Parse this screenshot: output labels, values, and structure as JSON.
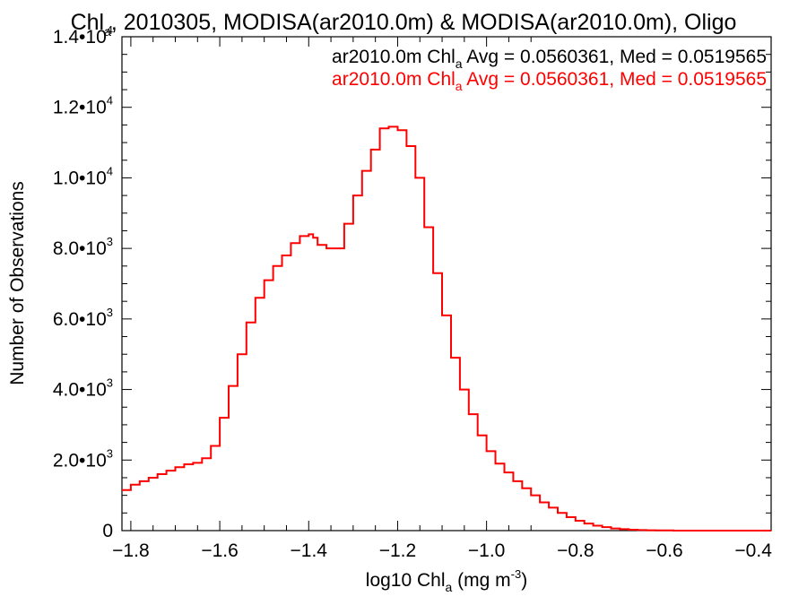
{
  "chart_data": {
    "type": "line",
    "title": {
      "pre": "Chl",
      "sub": "a",
      "post": ", 2010305, MODISA(ar2010.0m) & MODISA(ar2010.0m), Oligo"
    },
    "xlabel": {
      "pre": "log10 Chl",
      "sub": "a",
      "mid": " (mg m",
      "sup": "-3",
      "post": ")"
    },
    "ylabel": "Number of Observations",
    "xlim": [
      -1.82,
      -0.36
    ],
    "ylim": [
      0,
      14000
    ],
    "x_ticks": [
      {
        "value": -1.8,
        "label": "−1.8"
      },
      {
        "value": -1.6,
        "label": "−1.6"
      },
      {
        "value": -1.4,
        "label": "−1.4"
      },
      {
        "value": -1.2,
        "label": "−1.2"
      },
      {
        "value": -1.0,
        "label": "−1.0"
      },
      {
        "value": -0.8,
        "label": "−0.8"
      },
      {
        "value": -0.6,
        "label": "−0.6"
      },
      {
        "value": -0.4,
        "label": "−0.4"
      }
    ],
    "y_ticks": [
      {
        "value": 0,
        "mant": "0",
        "exp": ""
      },
      {
        "value": 2000,
        "mant": "2.0•10",
        "exp": "3"
      },
      {
        "value": 4000,
        "mant": "4.0•10",
        "exp": "3"
      },
      {
        "value": 6000,
        "mant": "6.0•10",
        "exp": "3"
      },
      {
        "value": 8000,
        "mant": "8.0•10",
        "exp": "3"
      },
      {
        "value": 10000,
        "mant": "1.0•10",
        "exp": "4"
      },
      {
        "value": 12000,
        "mant": "1.2•10",
        "exp": "4"
      },
      {
        "value": 14000,
        "mant": "1.4•10",
        "exp": "4"
      }
    ],
    "annotations": [
      {
        "pre": "ar2010.0m Chl",
        "sub": "a",
        "post": " Avg = 0.0560361, Med = 0.0519565",
        "color": "#000000"
      },
      {
        "pre": "ar2010.0m Chl",
        "sub": "a",
        "post": " Avg = 0.0560361, Med = 0.0519565",
        "color": "#ff0000"
      }
    ],
    "grid": false,
    "series": [
      {
        "color": "#ff0000",
        "step": true,
        "x": [
          -1.82,
          -1.8,
          -1.78,
          -1.76,
          -1.74,
          -1.72,
          -1.7,
          -1.68,
          -1.66,
          -1.64,
          -1.62,
          -1.6,
          -1.58,
          -1.56,
          -1.54,
          -1.52,
          -1.5,
          -1.48,
          -1.46,
          -1.44,
          -1.42,
          -1.4,
          -1.39,
          -1.38,
          -1.36,
          -1.34,
          -1.32,
          -1.3,
          -1.28,
          -1.26,
          -1.24,
          -1.22,
          -1.2,
          -1.18,
          -1.16,
          -1.14,
          -1.12,
          -1.1,
          -1.08,
          -1.06,
          -1.04,
          -1.02,
          -1.0,
          -0.98,
          -0.96,
          -0.94,
          -0.92,
          -0.9,
          -0.88,
          -0.86,
          -0.84,
          -0.82,
          -0.8,
          -0.78,
          -0.76,
          -0.74,
          -0.72,
          -0.7,
          -0.68,
          -0.66,
          -0.64,
          -0.62,
          -0.6,
          -0.58,
          -0.56,
          -0.54,
          -0.52,
          -0.5,
          -0.48,
          -0.46,
          -0.44,
          -0.42,
          -0.4,
          -0.38,
          -0.36
        ],
        "y": [
          1150,
          1300,
          1400,
          1500,
          1600,
          1700,
          1800,
          1880,
          1920,
          2050,
          2400,
          3200,
          4100,
          5000,
          5900,
          6600,
          7100,
          7500,
          7800,
          8150,
          8350,
          8400,
          8300,
          8100,
          8000,
          8000,
          8700,
          9500,
          10200,
          10800,
          11400,
          11450,
          11350,
          10900,
          10000,
          8600,
          7300,
          6100,
          4900,
          4000,
          3300,
          2700,
          2250,
          1900,
          1650,
          1400,
          1200,
          1000,
          800,
          650,
          500,
          380,
          280,
          200,
          140,
          100,
          60,
          40,
          25,
          15,
          10,
          5,
          5,
          0,
          0,
          0,
          0,
          0,
          0,
          0,
          0,
          0,
          0,
          0,
          0
        ]
      }
    ]
  }
}
